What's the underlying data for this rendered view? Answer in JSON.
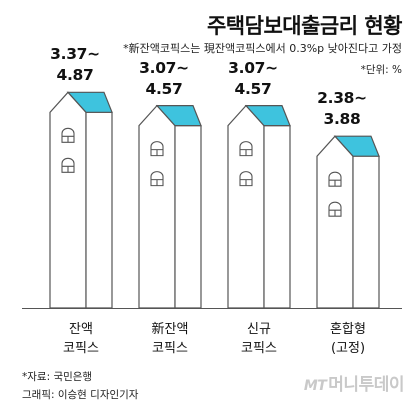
{
  "chart_data": {
    "type": "bar",
    "title": "주택담보대출금리 현황",
    "subtitle": "*新잔액코픽스는 現잔액코픽스에서 0.3%p 낮아진다고 가정",
    "unit_note": "*단위: %",
    "categories": [
      {
        "line1": "잔액",
        "line2": "코픽스"
      },
      {
        "line1": "新잔액",
        "line2": "코픽스"
      },
      {
        "line1": "신규",
        "line2": "코픽스"
      },
      {
        "line1": "혼합형",
        "line2": "(고정)"
      }
    ],
    "series": [
      {
        "low": 3.37,
        "high": 4.87,
        "label_low": "3.37~",
        "label_high": "4.87"
      },
      {
        "low": 3.07,
        "high": 4.57,
        "label_low": "3.07~",
        "label_high": "4.57"
      },
      {
        "low": 3.07,
        "high": 4.57,
        "label_low": "3.07~",
        "label_high": "4.57"
      },
      {
        "low": 2.38,
        "high": 3.88,
        "label_low": "2.38~",
        "label_high": "3.88"
      }
    ],
    "ylim": [
      0,
      5.6
    ],
    "colors": {
      "roof": "#3ec3de",
      "building": "#ffffff",
      "outline": "#555555",
      "window": "#555555"
    }
  },
  "footer": {
    "source": "*자료: 국민은행",
    "credit": "그래픽: 이승현 디자인기자",
    "logo_mt": "MT",
    "logo_text": "머니투데이"
  }
}
